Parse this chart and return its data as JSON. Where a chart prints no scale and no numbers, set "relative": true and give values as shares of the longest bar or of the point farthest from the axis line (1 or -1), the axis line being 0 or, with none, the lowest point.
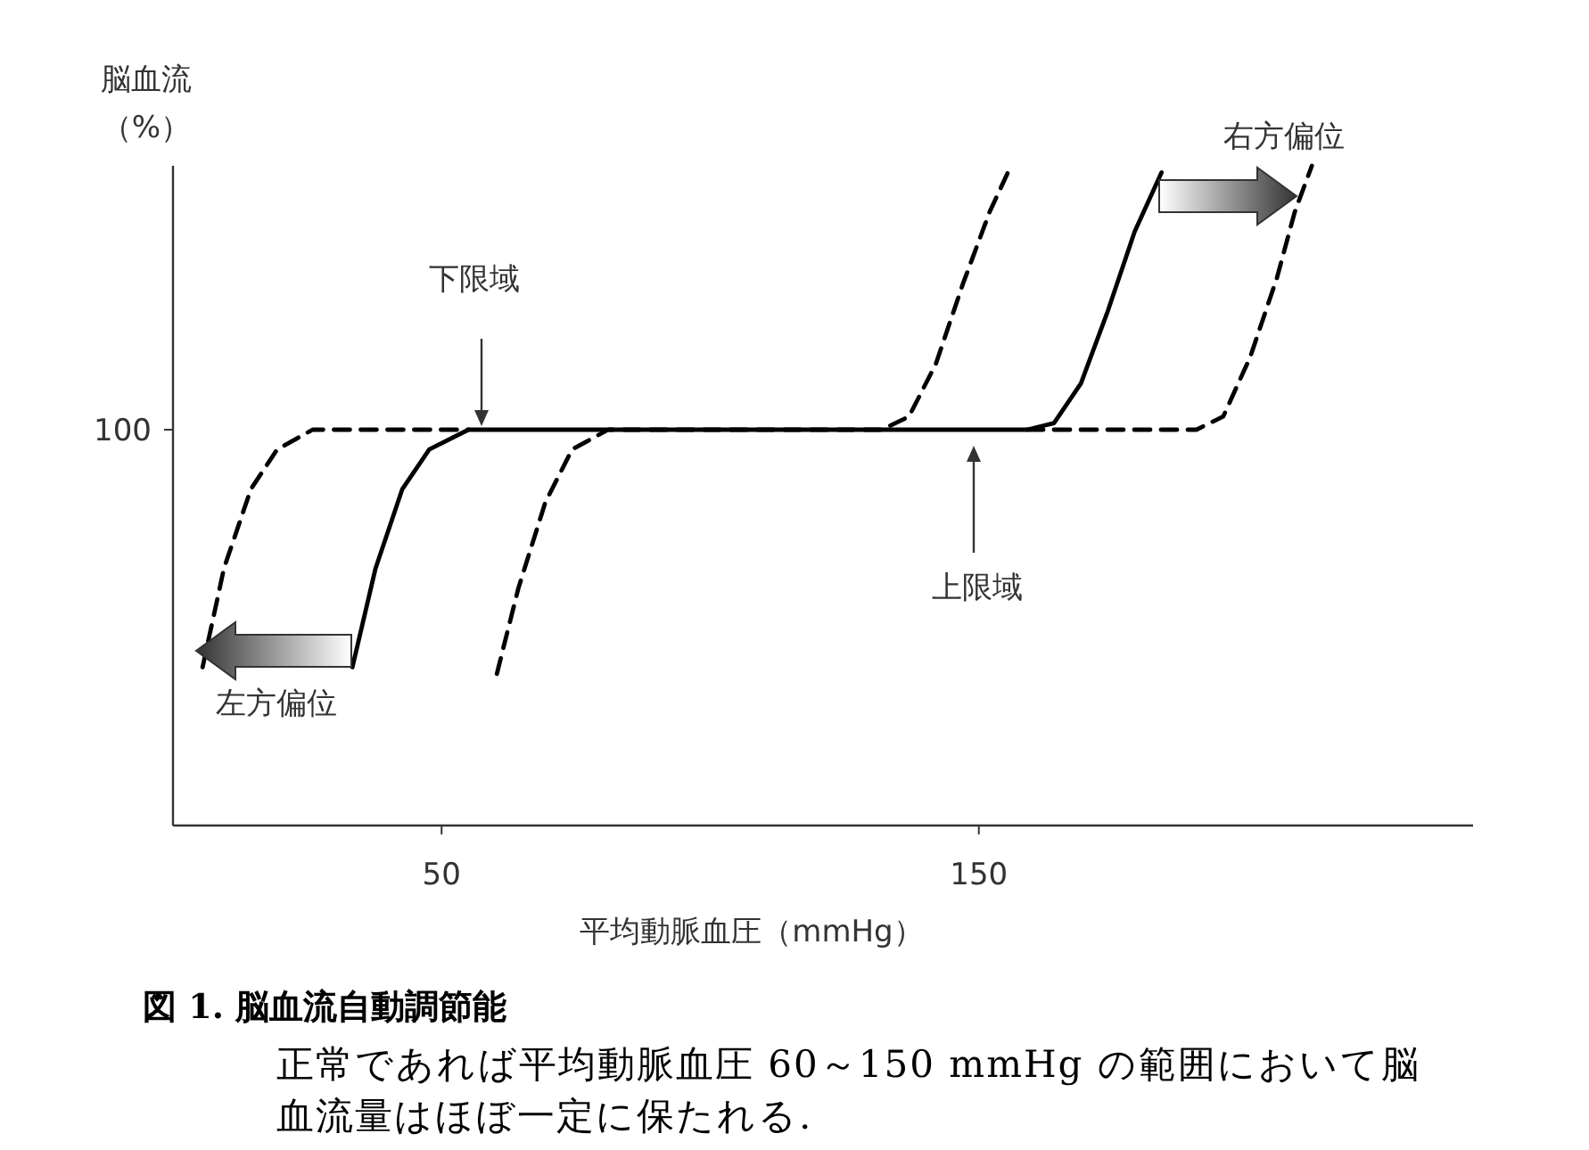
{
  "chart_data": {
    "type": "line",
    "relative": true,
    "xlabel": "平均動脈血圧（mmHg）",
    "ylabel": "脳血流（%）",
    "xlim": [
      0,
      242
    ],
    "xticks": [
      50,
      150
    ],
    "series": [
      {
        "color": "#000000",
        "line_style": "solid",
        "x": [
          33.4,
          37.7,
          42.7,
          47.7,
          55,
          159,
          164,
          169,
          174,
          179,
          184
        ],
        "values": [
          0.24,
          0.39,
          0.51,
          0.57,
          0.6,
          0.6,
          0.61,
          0.67,
          0.78,
          0.9,
          0.99
        ]
      },
      {
        "color": "#000000",
        "line_style": "dashed",
        "x": [
          5.5,
          9.5,
          14.5,
          19.4,
          26,
          55
        ],
        "values": [
          0.24,
          0.39,
          0.51,
          0.57,
          0.6,
          0.6
        ]
      },
      {
        "color": "#000000",
        "line_style": "dashed",
        "x": [
          60.3,
          64.3,
          69.3,
          74.3,
          81,
          132,
          137,
          142,
          147,
          152,
          156
        ],
        "values": [
          0.23,
          0.36,
          0.49,
          0.57,
          0.6,
          0.6,
          0.62,
          0.7,
          0.82,
          0.93,
          1.0
        ]
      },
      {
        "color": "#000000",
        "line_style": "dashed",
        "x": [
          159,
          190.5,
          195.5,
          200.5,
          205.5,
          208.8,
          212
        ],
        "values": [
          0.6,
          0.6,
          0.62,
          0.71,
          0.83,
          0.93,
          1.0
        ]
      }
    ],
    "annotations": [
      "100",
      "下限域",
      "上限域",
      "左方偏位",
      "右方偏位",
      "図 1. 脳血流自動調節能",
      "正常であれば平均動脈血圧 60～150 mmHg の範囲において脳血流量はほぼ一定に保たれる."
    ]
  }
}
